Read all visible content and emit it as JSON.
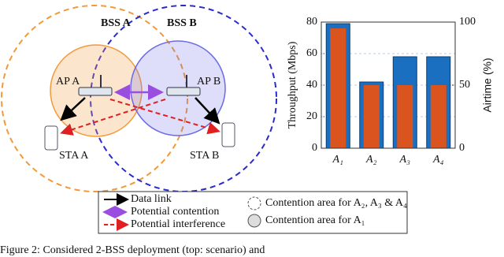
{
  "diagram": {
    "bss_a": "BSS A",
    "bss_b": "BSS B",
    "ap_a": "AP A",
    "ap_b": "AP B",
    "sta_a": "STA A",
    "sta_b": "STA B"
  },
  "legend": {
    "data_link": "Data link",
    "potential_contention": "Potential contention",
    "potential_interference": "Potential interference",
    "contention_area_a234": "Contention area for A₂, A₃ & A₄",
    "contention_area_a1": "Contention area for A₁"
  },
  "chart_data": {
    "type": "bar",
    "categories": [
      "A₁",
      "A₂",
      "A₃",
      "A₄"
    ],
    "ylabel": "Throughput (Mbps)",
    "y2label": "Airtime (%)",
    "series": [
      {
        "name": "Throughput (Mbps)",
        "color": "#1b6fc0",
        "values": [
          79,
          42,
          58,
          58
        ]
      },
      {
        "name": "Airtime (%)",
        "color": "#d9541e",
        "values": [
          95,
          50,
          50,
          50
        ],
        "axis": "y2"
      }
    ],
    "ylim": [
      0,
      80
    ],
    "yticks": [
      0,
      20,
      40,
      60,
      80
    ],
    "y2lim": [
      0,
      100
    ],
    "y2ticks": [
      0,
      50,
      100
    ],
    "grid": true
  },
  "caption": "Figure 2: Considered 2-BSS deployment (top: scenario) and"
}
